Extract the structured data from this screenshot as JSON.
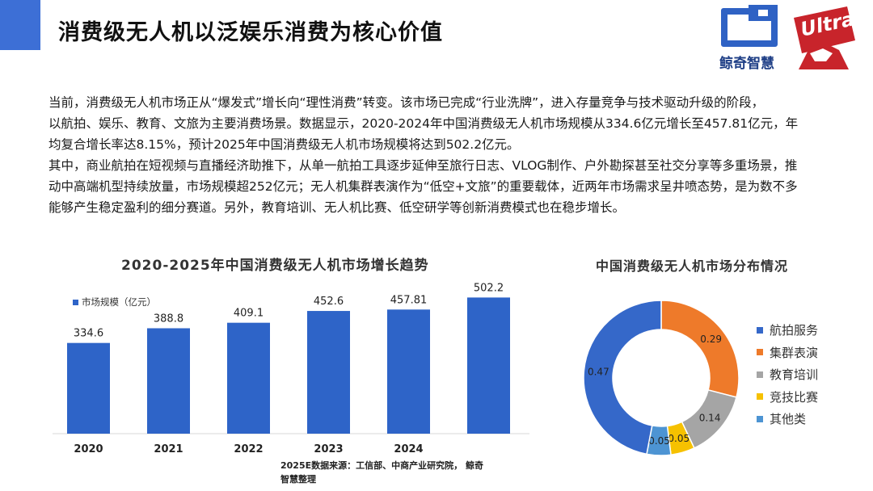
{
  "header": {
    "title": "消费级无人机以泛娱乐消费为核心价值",
    "logo_jingqi_text": "鲸奇智慧",
    "logo_ultra_text": "Ultra"
  },
  "body": {
    "paragraph1_line1": "当前，消费级无人机市场正从“爆发式”增长向“理性消费”转变。该市场已完成“行业洗牌”，进入存量竞争与技术驱动升级的阶段，",
    "paragraph1_line2": "以航拍、娱乐、教育、文旅为主要消费场景。数据显示，2020-2024年中国消费级无人机市场规模从334.6亿元增长至457.81亿元，年",
    "paragraph1_line3": "均复合增长率达8.15%，预计2025年中国消费级无人机市场规模将达到502.2亿元。",
    "paragraph2_line1": "其中，商业航拍在短视频与直播经济助推下，从单一航拍工具逐步延伸至旅行日志、VLOG制作、户外勘探甚至社交分享等多重场景，推",
    "paragraph2_line2": "动中高端机型持续放量，市场规模超252亿元；无人机集群表演作为“低空+文旅”的重要载体，近两年市场需求呈井喷态势，是为数不多",
    "paragraph2_line3": "能够产生稳定盈利的细分赛道。另外，教育培训、无人机比赛、低空研学等创新消费模式也在稳步增长。"
  },
  "source_line1": "2025E数据来源：工信部、中商产业研究院， 鲸奇",
  "source_line2": "智慧整理",
  "chart_data": [
    {
      "type": "bar",
      "title": "2020-2025年中国消费级无人机市场增长趋势",
      "legend": "市场规模（亿元）",
      "categories": [
        "2020",
        "2021",
        "2022",
        "2023",
        "2024",
        ""
      ],
      "values": [
        334.6,
        388.8,
        409.1,
        452.6,
        457.81,
        502.2
      ],
      "value_labels": [
        "334.6",
        "388.8",
        "409.1",
        "452.6",
        "457.81",
        "502.2"
      ],
      "color": "#2e64c8",
      "ylim": [
        0,
        560
      ]
    },
    {
      "type": "pie",
      "title": "中国消费级无人机市场分布情况",
      "labels": [
        "航拍服务",
        "集群表演",
        "教育培训",
        "竞技比赛",
        "其他类"
      ],
      "values": [
        0.47,
        0.29,
        0.14,
        0.05,
        0.05
      ],
      "value_labels": [
        "0.47",
        "0.29",
        "0.14",
        "0.05",
        "0.05"
      ],
      "colors": [
        "#3568c9",
        "#ee7a2a",
        "#a5a5a5",
        "#f6c100",
        "#4d94d3"
      ]
    }
  ]
}
